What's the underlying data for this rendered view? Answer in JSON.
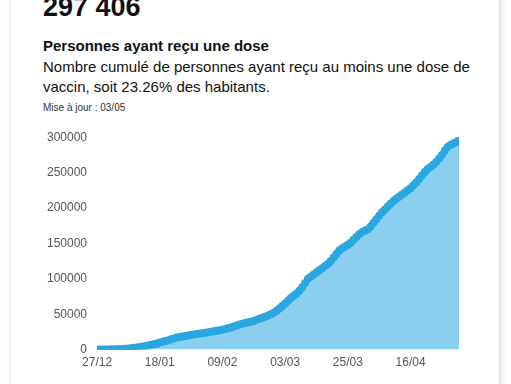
{
  "chart_data": {
    "type": "area",
    "headline": "297 406",
    "title": "Personnes ayant reçu une dose",
    "subtitle": "Nombre cumulé de personnes ayant reçu au moins une dose de vaccin, soit 23.26% des habitants.",
    "note": "Mise à jour : 03/05",
    "color": "#2aa7e1",
    "grid": false,
    "ylim": [
      0,
      300000
    ],
    "yticks": [
      0,
      50000,
      100000,
      150000,
      200000,
      250000,
      300000
    ],
    "categories": [
      "27/12",
      null,
      null,
      null,
      null,
      null,
      null,
      null,
      null,
      null,
      null,
      null,
      null,
      null,
      null,
      null,
      null,
      null,
      null,
      null,
      null,
      null,
      "18/01",
      null,
      null,
      null,
      null,
      null,
      null,
      null,
      null,
      null,
      null,
      null,
      null,
      null,
      null,
      null,
      null,
      null,
      null,
      null,
      null,
      null,
      "09/02",
      null,
      null,
      null,
      null,
      null,
      null,
      null,
      null,
      null,
      null,
      null,
      null,
      null,
      null,
      null,
      null,
      null,
      null,
      null,
      null,
      null,
      "03/03",
      null,
      null,
      null,
      null,
      null,
      null,
      null,
      null,
      null,
      null,
      null,
      null,
      null,
      null,
      null,
      null,
      null,
      null,
      null,
      null,
      null,
      "25/03",
      null,
      null,
      null,
      null,
      null,
      null,
      null,
      null,
      null,
      null,
      null,
      null,
      null,
      null,
      null,
      null,
      null,
      null,
      null,
      null,
      null,
      "16/04",
      null,
      null,
      null,
      null,
      null,
      null,
      null,
      null,
      null,
      null,
      null,
      null,
      null,
      null,
      null,
      null,
      null
    ],
    "values": [
      0,
      0,
      100,
      200,
      300,
      400,
      500,
      600,
      800,
      1000,
      1300,
      1600,
      2000,
      2500,
      3000,
      3600,
      4300,
      5000,
      5800,
      6700,
      7600,
      8700,
      10000,
      11200,
      12300,
      13200,
      14500,
      15800,
      17000,
      17800,
      18500,
      19200,
      20000,
      20700,
      21300,
      22000,
      22600,
      23200,
      23900,
      24600,
      25300,
      26000,
      26700,
      27300,
      28000,
      29000,
      30000,
      31200,
      32500,
      34000,
      35500,
      36500,
      37500,
      38500,
      39500,
      40500,
      42000,
      43500,
      45000,
      46500,
      48000,
      50000,
      52000,
      55000,
      58000,
      61500,
      65000,
      69000,
      73000,
      76000,
      79000,
      83000,
      88000,
      94000,
      100000,
      103000,
      106000,
      109000,
      112000,
      115000,
      118000,
      121000,
      125000,
      130000,
      135000,
      140000,
      143000,
      145500,
      148000,
      151000,
      155000,
      159000,
      163000,
      166000,
      168000,
      170000,
      174000,
      179000,
      184000,
      189000,
      194000,
      198000,
      202000,
      206000,
      210000,
      213000,
      216000,
      219000,
      222000,
      225000,
      228000,
      232000,
      236000,
      241000,
      246000,
      251000,
      255000,
      258000,
      261000,
      265000,
      270000,
      275000,
      281000,
      286000,
      289000,
      291000,
      293000,
      297406
    ]
  }
}
